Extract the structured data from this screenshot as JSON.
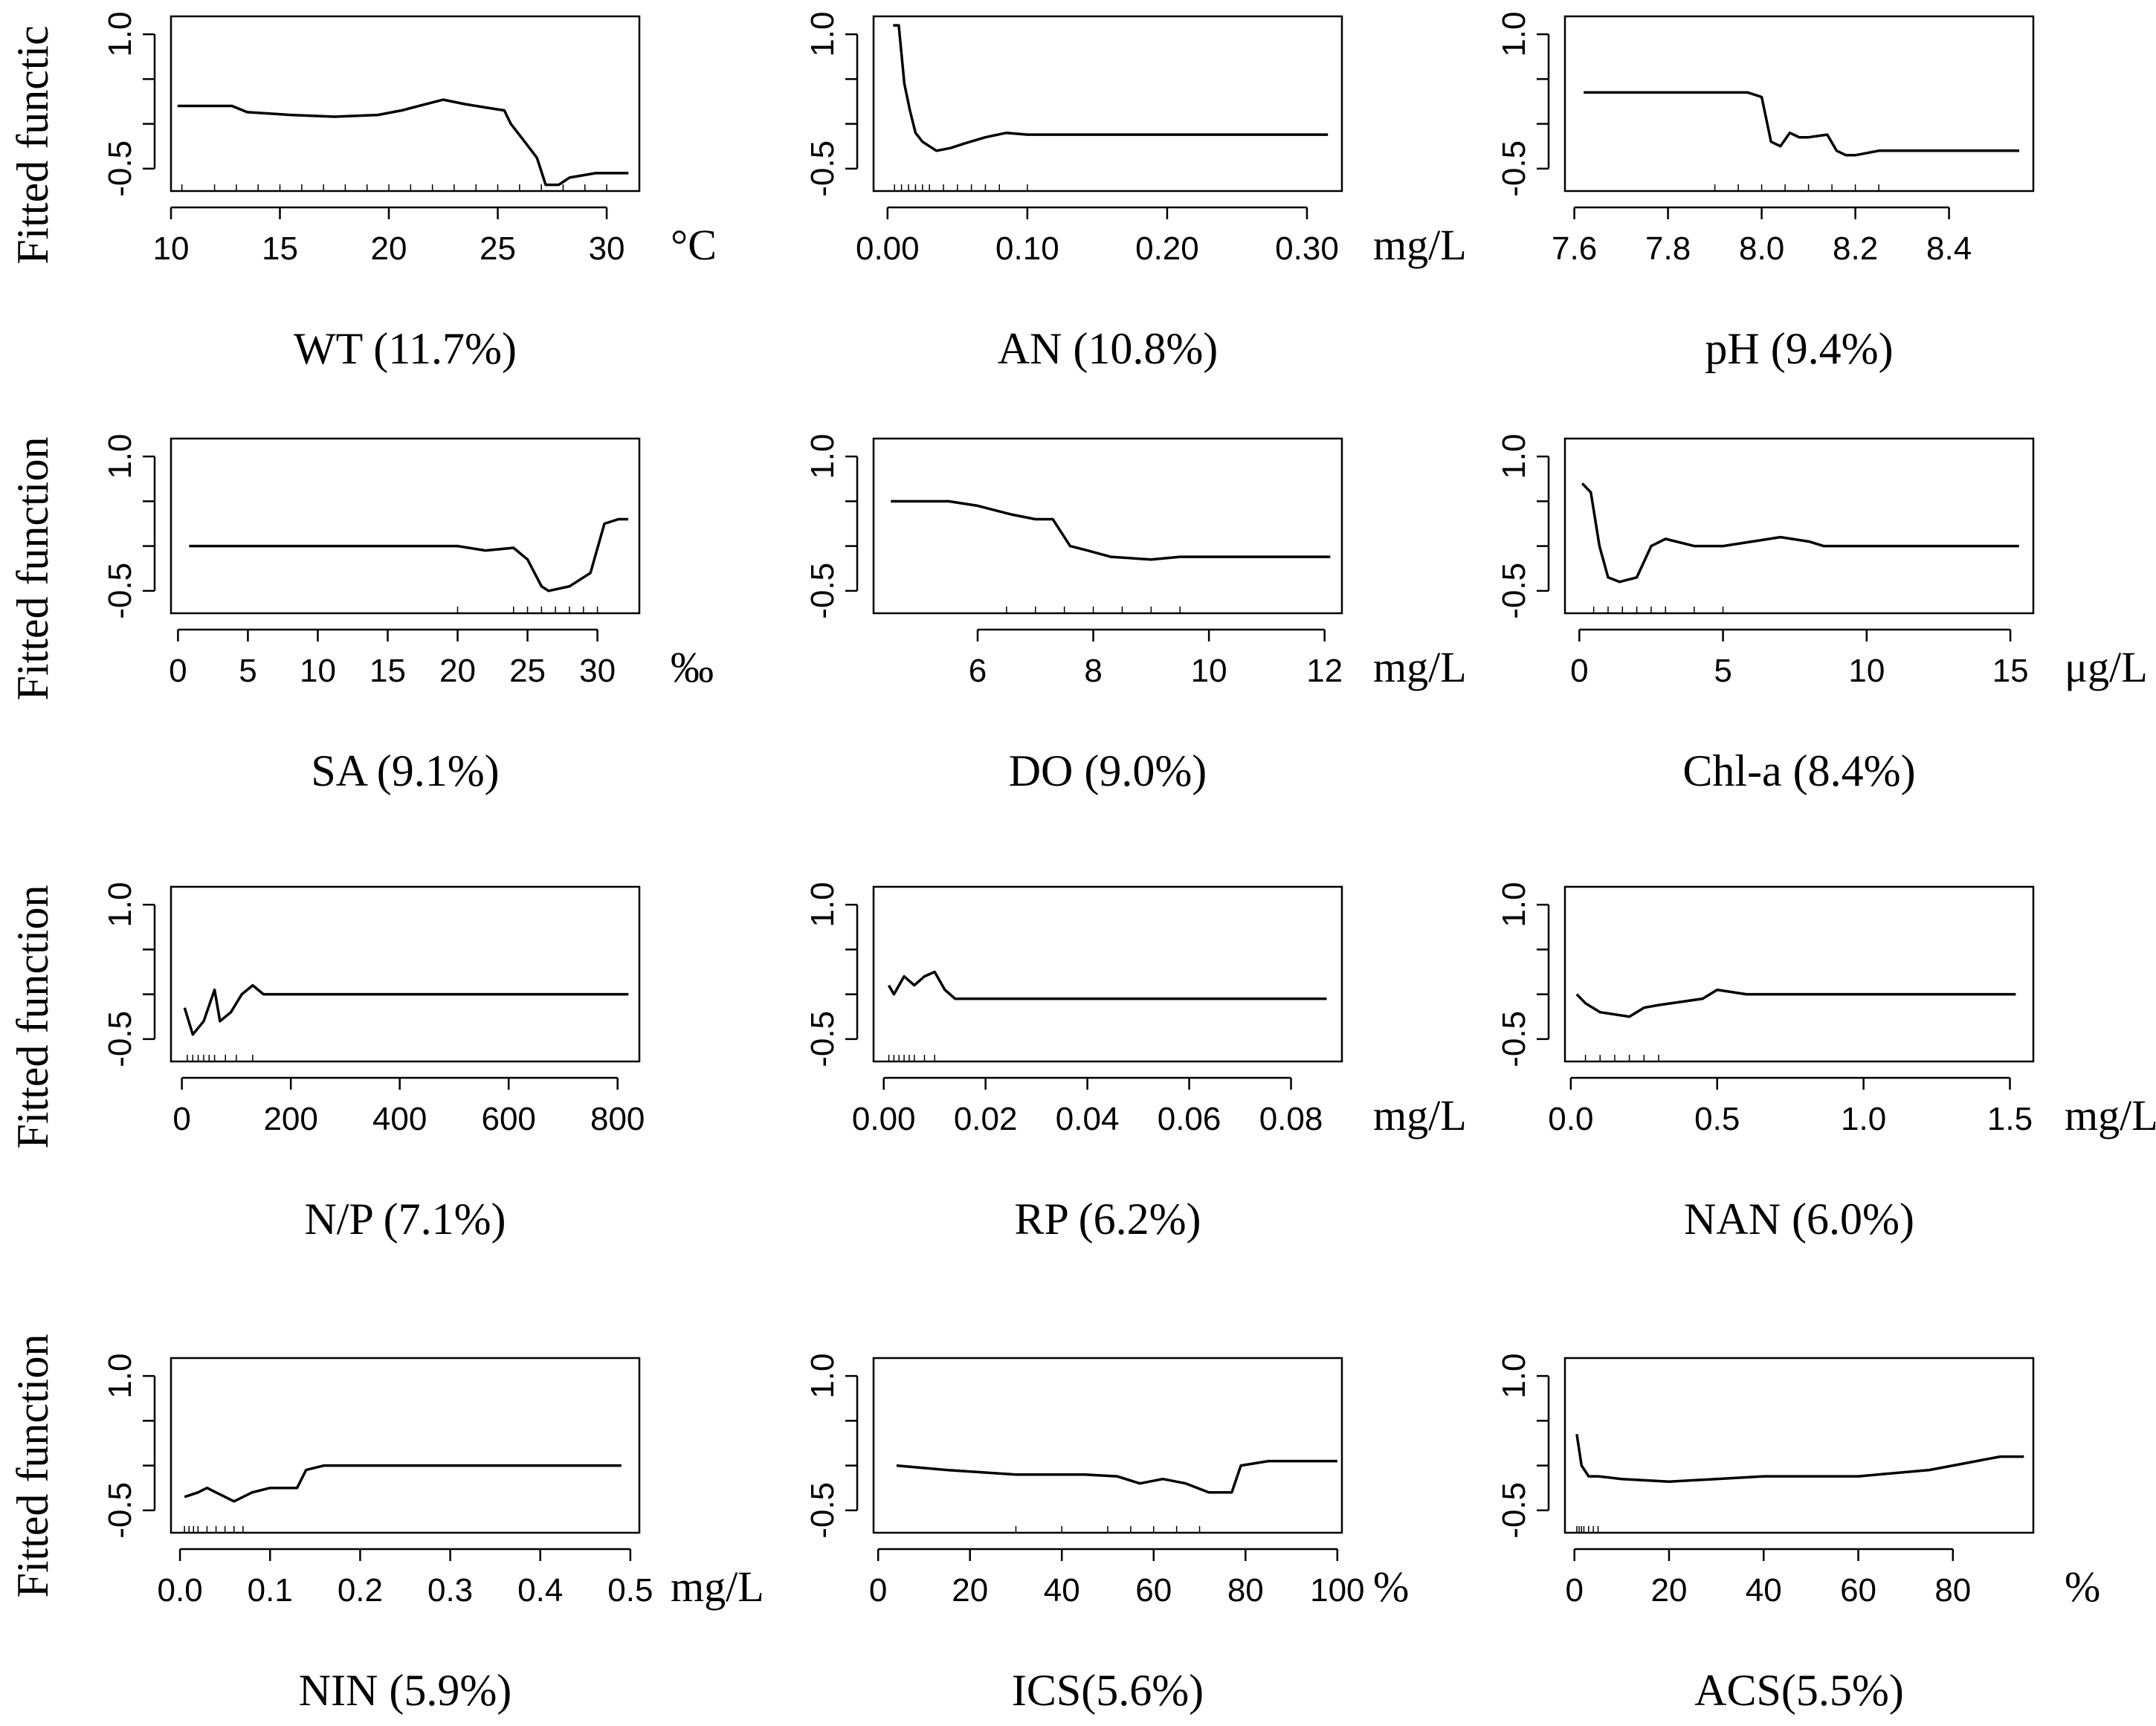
{
  "figure": {
    "ylabel": "Fitted function",
    "ylabel_truncated": "Fitted functic"
  },
  "chart_data": [
    {
      "type": "line",
      "xlabel": "WT (11.7%)",
      "unit": "°C",
      "xlim": [
        10,
        31.5
      ],
      "ylim": [
        -0.75,
        1.2
      ],
      "xticks": [
        10,
        15,
        20,
        25,
        30
      ],
      "xtick_labels": [
        "10",
        "15",
        "20",
        "25",
        "30"
      ],
      "yticks": [
        -0.5,
        1.0
      ],
      "ytick_labels": [
        "-0.5",
        "1.0"
      ],
      "x": [
        10.3,
        12.8,
        13.5,
        15.5,
        17.5,
        19.5,
        20.6,
        21.7,
        22.5,
        23.5,
        24.5,
        25.3,
        25.6,
        26.3,
        26.8,
        27.2,
        27.8,
        28.3,
        29.5,
        31.0
      ],
      "y": [
        0.2,
        0.2,
        0.13,
        0.1,
        0.08,
        0.1,
        0.15,
        0.22,
        0.27,
        0.22,
        0.18,
        0.15,
        0.0,
        -0.22,
        -0.38,
        -0.68,
        -0.68,
        -0.6,
        -0.55,
        -0.55
      ],
      "rug": [
        10.5,
        12,
        13,
        14,
        15,
        16,
        17,
        18,
        19,
        20,
        21,
        22,
        23,
        24,
        25,
        26,
        27,
        28,
        29,
        30
      ]
    },
    {
      "type": "line",
      "xlabel": "AN (10.8%)",
      "unit": "mg/L",
      "xlim": [
        -0.01,
        0.325
      ],
      "ylim": [
        -0.75,
        1.2
      ],
      "xticks": [
        0.0,
        0.1,
        0.2,
        0.3
      ],
      "xtick_labels": [
        "0.00",
        "0.10",
        "0.20",
        "0.30"
      ],
      "yticks": [
        -0.5,
        1.0
      ],
      "ytick_labels": [
        "-0.5",
        "1.0"
      ],
      "x": [
        0.004,
        0.008,
        0.012,
        0.016,
        0.02,
        0.025,
        0.035,
        0.045,
        0.055,
        0.07,
        0.085,
        0.1,
        0.12,
        0.15,
        0.2,
        0.25,
        0.315
      ],
      "y": [
        1.1,
        1.1,
        0.45,
        0.15,
        -0.1,
        -0.2,
        -0.3,
        -0.27,
        -0.22,
        -0.15,
        -0.1,
        -0.12,
        -0.12,
        -0.12,
        -0.12,
        -0.12,
        -0.12
      ],
      "rug": [
        0.005,
        0.01,
        0.015,
        0.02,
        0.025,
        0.03,
        0.04,
        0.05,
        0.06,
        0.07,
        0.08,
        0.1
      ]
    },
    {
      "type": "line",
      "xlabel": "pH (9.4%)",
      "unit": "",
      "xlim": [
        7.58,
        8.58
      ],
      "ylim": [
        -0.75,
        1.2
      ],
      "xticks": [
        7.6,
        7.8,
        8.0,
        8.2,
        8.4
      ],
      "xtick_labels": [
        "7.6",
        "7.8",
        "8.0",
        "8.2",
        "8.4"
      ],
      "yticks": [
        -0.5,
        1.0
      ],
      "ytick_labels": [
        "-0.5",
        "1.0"
      ],
      "x": [
        7.62,
        7.8,
        7.97,
        8.0,
        8.02,
        8.04,
        8.06,
        8.08,
        8.1,
        8.14,
        8.16,
        8.18,
        8.2,
        8.25,
        8.3,
        8.55
      ],
      "y": [
        0.35,
        0.35,
        0.35,
        0.3,
        -0.2,
        -0.25,
        -0.1,
        -0.15,
        -0.15,
        -0.12,
        -0.3,
        -0.35,
        -0.35,
        -0.3,
        -0.3,
        -0.3
      ],
      "rug": [
        7.9,
        7.95,
        8.0,
        8.05,
        8.1,
        8.15,
        8.2,
        8.25
      ]
    },
    {
      "type": "line",
      "xlabel": "SA (9.1%)",
      "unit": "‰",
      "xlim": [
        -0.5,
        33
      ],
      "ylim": [
        -0.75,
        1.2
      ],
      "xticks": [
        0,
        5,
        10,
        15,
        20,
        25,
        30
      ],
      "xtick_labels": [
        "0",
        "5",
        "10",
        "15",
        "20",
        "25",
        "30"
      ],
      "yticks": [
        -0.5,
        1.0
      ],
      "ytick_labels": [
        "-0.5",
        "1.0"
      ],
      "x": [
        0.8,
        10,
        20,
        22,
        24,
        25,
        26,
        26.5,
        28,
        29.5,
        30.5,
        31.5,
        32.2
      ],
      "y": [
        0.0,
        0.0,
        0.0,
        -0.05,
        -0.02,
        -0.15,
        -0.45,
        -0.5,
        -0.45,
        -0.3,
        0.25,
        0.3,
        0.3
      ],
      "rug": [
        20,
        24,
        25,
        26,
        27,
        28,
        29,
        30
      ]
    },
    {
      "type": "line",
      "xlabel": "DO (9.0%)",
      "unit": "mg/L",
      "xlim": [
        4.2,
        12.3
      ],
      "ylim": [
        -0.75,
        1.2
      ],
      "xticks": [
        6,
        8,
        10,
        12
      ],
      "xtick_labels": [
        "6",
        "8",
        "10",
        "12"
      ],
      "yticks": [
        -0.5,
        1.0
      ],
      "ytick_labels": [
        "-0.5",
        "1.0"
      ],
      "x": [
        4.5,
        5.5,
        6.0,
        6.3,
        6.6,
        7.0,
        7.3,
        7.6,
        7.9,
        8.3,
        9.0,
        9.5,
        10.0,
        12.1
      ],
      "y": [
        0.5,
        0.5,
        0.45,
        0.4,
        0.35,
        0.3,
        0.3,
        0.0,
        -0.05,
        -0.12,
        -0.15,
        -0.12,
        -0.12,
        -0.12
      ],
      "rug": [
        6.5,
        7,
        7.5,
        8,
        8.5,
        9,
        9.5
      ]
    },
    {
      "type": "line",
      "xlabel": "Chl-a (8.4%)",
      "unit": "μg/L",
      "xlim": [
        -0.5,
        15.8
      ],
      "ylim": [
        -0.75,
        1.2
      ],
      "xticks": [
        0,
        5,
        10,
        15
      ],
      "xtick_labels": [
        "0",
        "5",
        "10",
        "15"
      ],
      "yticks": [
        -0.5,
        1.0
      ],
      "ytick_labels": [
        "-0.5",
        "1.0"
      ],
      "x": [
        0.1,
        0.4,
        0.7,
        1.0,
        1.4,
        2.0,
        2.5,
        3.0,
        4.0,
        5.0,
        6.0,
        7.0,
        8.0,
        8.5,
        10,
        12,
        15.3
      ],
      "y": [
        0.7,
        0.6,
        0.0,
        -0.35,
        -0.4,
        -0.35,
        0.0,
        0.08,
        0.0,
        0.0,
        0.05,
        0.1,
        0.05,
        0.0,
        0.0,
        0.0,
        0.0
      ],
      "rug": [
        0.5,
        1,
        1.5,
        2,
        2.5,
        3,
        4,
        5
      ]
    },
    {
      "type": "line",
      "xlabel": "N/P (7.1%)",
      "unit": "",
      "xlim": [
        -20,
        840
      ],
      "ylim": [
        -0.75,
        1.2
      ],
      "xticks": [
        0,
        200,
        400,
        600,
        800
      ],
      "xtick_labels": [
        "0",
        "200",
        "400",
        "600",
        "800"
      ],
      "yticks": [
        -0.5,
        1.0
      ],
      "ytick_labels": [
        "-0.5",
        "1.0"
      ],
      "x": [
        5,
        20,
        40,
        60,
        70,
        90,
        110,
        130,
        150,
        200,
        320,
        500,
        820
      ],
      "y": [
        -0.15,
        -0.45,
        -0.3,
        0.05,
        -0.3,
        -0.2,
        0.0,
        0.1,
        0.0,
        0.0,
        0.0,
        0.0,
        0.0
      ],
      "rug": [
        10,
        20,
        30,
        40,
        50,
        60,
        80,
        100,
        130
      ]
    },
    {
      "type": "line",
      "xlabel": "RP (6.2%)",
      "unit": "mg/L",
      "xlim": [
        -0.002,
        0.09
      ],
      "ylim": [
        -0.75,
        1.2
      ],
      "xticks": [
        0.0,
        0.02,
        0.04,
        0.06,
        0.08
      ],
      "xtick_labels": [
        "0.00",
        "0.02",
        "0.04",
        "0.06",
        "0.08"
      ],
      "yticks": [
        -0.5,
        1.0
      ],
      "ytick_labels": [
        "-0.5",
        "1.0"
      ],
      "x": [
        0.001,
        0.002,
        0.004,
        0.006,
        0.008,
        0.01,
        0.012,
        0.014,
        0.02,
        0.04,
        0.087
      ],
      "y": [
        0.1,
        0.0,
        0.2,
        0.1,
        0.2,
        0.25,
        0.05,
        -0.05,
        -0.05,
        -0.05,
        -0.05
      ],
      "rug": [
        0.001,
        0.002,
        0.003,
        0.004,
        0.005,
        0.006,
        0.008,
        0.01
      ]
    },
    {
      "type": "line",
      "xlabel": "NAN (6.0%)",
      "unit": "mg/L",
      "xlim": [
        -0.02,
        1.58
      ],
      "ylim": [
        -0.75,
        1.2
      ],
      "xticks": [
        0.0,
        0.5,
        1.0,
        1.5
      ],
      "xtick_labels": [
        "0.0",
        "0.5",
        "1.0",
        "1.5"
      ],
      "yticks": [
        -0.5,
        1.0
      ],
      "ytick_labels": [
        "-0.5",
        "1.0"
      ],
      "x": [
        0.02,
        0.05,
        0.1,
        0.2,
        0.25,
        0.3,
        0.45,
        0.5,
        0.6,
        0.8,
        1.2,
        1.52
      ],
      "y": [
        0.0,
        -0.1,
        -0.2,
        -0.25,
        -0.15,
        -0.12,
        -0.05,
        0.05,
        0.0,
        0.0,
        0.0,
        0.0
      ],
      "rug": [
        0.05,
        0.1,
        0.15,
        0.2,
        0.25,
        0.3
      ]
    },
    {
      "type": "line",
      "xlabel": "NIN (5.9%)",
      "unit": "mg/L",
      "xlim": [
        -0.01,
        0.51
      ],
      "ylim": [
        -0.75,
        1.2
      ],
      "xticks": [
        0.0,
        0.1,
        0.2,
        0.3,
        0.4,
        0.5
      ],
      "xtick_labels": [
        "0.0",
        "0.1",
        "0.2",
        "0.3",
        "0.4",
        "0.5"
      ],
      "yticks": [
        -0.5,
        1.0
      ],
      "ytick_labels": [
        "-0.5",
        "1.0"
      ],
      "x": [
        0.005,
        0.02,
        0.03,
        0.04,
        0.05,
        0.06,
        0.08,
        0.1,
        0.13,
        0.14,
        0.16,
        0.2,
        0.3,
        0.49
      ],
      "y": [
        -0.35,
        -0.3,
        -0.25,
        -0.3,
        -0.35,
        -0.4,
        -0.3,
        -0.25,
        -0.25,
        -0.05,
        0.0,
        0.0,
        0.0,
        0.0
      ],
      "rug": [
        0.005,
        0.01,
        0.015,
        0.02,
        0.03,
        0.04,
        0.05,
        0.06,
        0.07
      ]
    },
    {
      "type": "line",
      "xlabel": "ICS(5.6%)",
      "unit": "%",
      "xlim": [
        -1,
        101
      ],
      "ylim": [
        -0.75,
        1.2
      ],
      "xticks": [
        0,
        20,
        40,
        60,
        80,
        100
      ],
      "xtick_labels": [
        "0",
        "20",
        "40",
        "60",
        "80",
        "100"
      ],
      "yticks": [
        -0.5,
        1.0
      ],
      "ytick_labels": [
        "-0.5",
        "1.0"
      ],
      "x": [
        4,
        15,
        30,
        45,
        52,
        57,
        62,
        67,
        72,
        77,
        79,
        85,
        100
      ],
      "y": [
        0.0,
        -0.05,
        -0.1,
        -0.1,
        -0.12,
        -0.2,
        -0.15,
        -0.2,
        -0.3,
        -0.3,
        0.0,
        0.05,
        0.05
      ],
      "rug": [
        30,
        40,
        50,
        55,
        60,
        65,
        70
      ]
    },
    {
      "type": "line",
      "xlabel": "ACS(5.5%)",
      "unit": "%",
      "xlim": [
        -2,
        97
      ],
      "ylim": [
        -0.75,
        1.2
      ],
      "xticks": [
        0,
        20,
        40,
        60,
        80
      ],
      "xtick_labels": [
        "0",
        "20",
        "40",
        "60",
        "80"
      ],
      "yticks": [
        -0.5,
        1.0
      ],
      "ytick_labels": [
        "-0.5",
        "1.0"
      ],
      "x": [
        0.5,
        1.5,
        3,
        5,
        10,
        20,
        30,
        40,
        60,
        75,
        85,
        90,
        95
      ],
      "y": [
        0.35,
        0.0,
        -0.12,
        -0.12,
        -0.15,
        -0.18,
        -0.15,
        -0.12,
        -0.12,
        -0.05,
        0.05,
        0.1,
        0.1
      ],
      "rug": [
        0.5,
        1,
        1.5,
        2,
        3,
        4,
        5
      ]
    }
  ]
}
